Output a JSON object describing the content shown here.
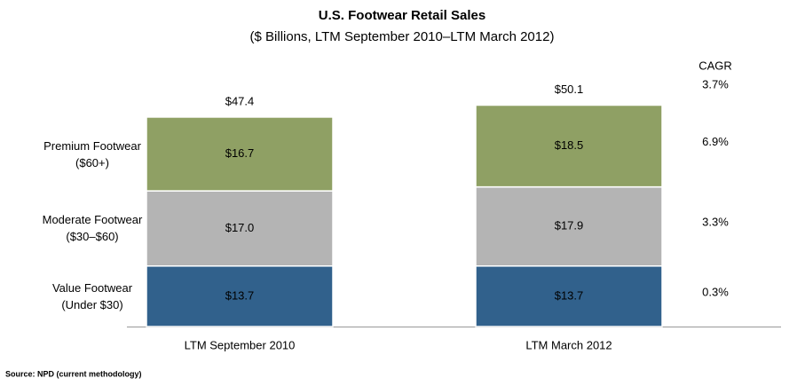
{
  "chart_data": {
    "type": "stacked_bar",
    "title": "U.S. Footwear Retail Sales",
    "subtitle": "($ Billions, LTM September 2010–LTM March 2012)",
    "categories": [
      "LTM September 2010",
      "LTM March 2012"
    ],
    "series": [
      {
        "name": "Value Footwear\n(Under $30)",
        "color": "#31618c",
        "values": [
          13.7,
          13.7
        ],
        "value_labels": [
          "$13.7",
          "$13.7"
        ],
        "cagr": 0.3,
        "cagr_label": "0.3%"
      },
      {
        "name": "Moderate Footwear\n($30–$60)",
        "color": "#b4b4b4",
        "values": [
          17.0,
          17.9
        ],
        "value_labels": [
          "$17.0",
          "$17.9"
        ],
        "cagr": 3.3,
        "cagr_label": "3.3%"
      },
      {
        "name": "Premium Footwear\n($60+)",
        "color": "#8fa064",
        "values": [
          16.7,
          18.5
        ],
        "value_labels": [
          "$16.7",
          "$18.5"
        ],
        "cagr": 6.9,
        "cagr_label": "6.9%"
      }
    ],
    "totals": [
      47.4,
      50.1
    ],
    "total_labels": [
      "$47.4",
      "$50.1"
    ],
    "cagr_header": "CAGR",
    "total_cagr": 3.7,
    "total_cagr_label": "3.7%",
    "source": "Source: NPD (current methodology)"
  }
}
